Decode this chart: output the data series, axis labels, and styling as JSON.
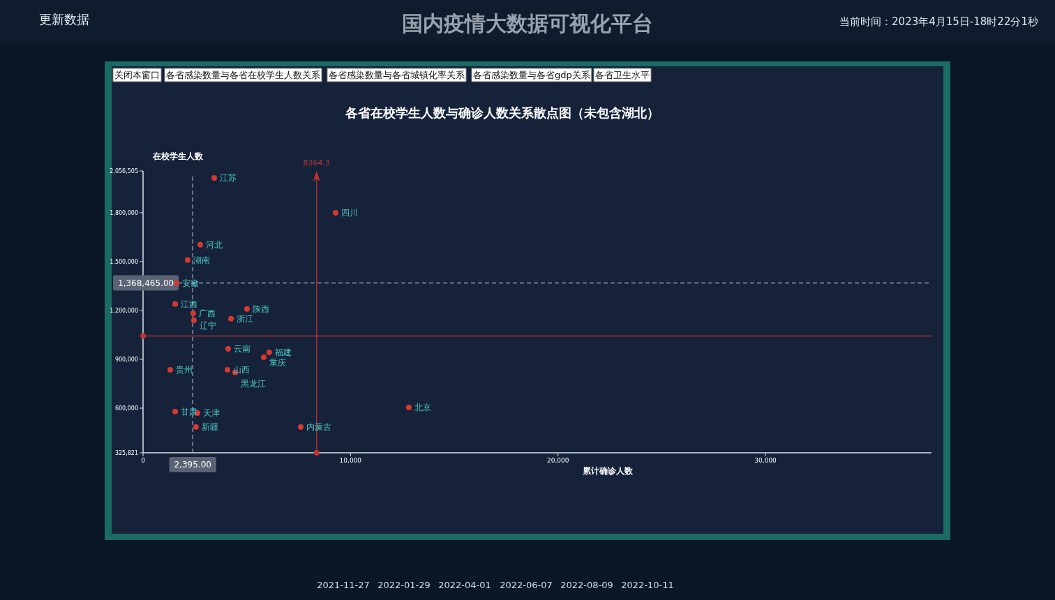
{
  "chart_data": {
    "type": "scatter",
    "title": "各省在校学生人数与确诊人数关系散点图（未包含湖北）",
    "xlabel": "累计确诊人数",
    "ylabel": "在校学生人数",
    "series": [
      {
        "color": "#d63a2f",
        "x": [
          3430,
          9280,
          2760,
          2150,
          1610,
          1550,
          2420,
          2450,
          5010,
          4240,
          4100,
          6080,
          5820,
          1310,
          4070,
          4440,
          1550,
          2620,
          2550,
          7600,
          12810
        ],
        "values": [
          2014000,
          1800000,
          1603000,
          1509000,
          1368000,
          1239000,
          1183000,
          1140000,
          1209000,
          1149000,
          964000,
          943000,
          913000,
          836000,
          836000,
          819000,
          579000,
          570000,
          484000,
          484000,
          604000
        ]
      }
    ],
    "xlim": [
      0,
      38000
    ],
    "ylim": [
      325821,
      2056505
    ],
    "xticks": [
      0,
      {
        "value": 10000,
        "label": "10,000"
      },
      {
        "value": 20000,
        "label": "20,000"
      },
      {
        "value": 30000,
        "label": "30,000"
      }
    ],
    "yticks": [
      {
        "value": 325821,
        "label": "325,821"
      },
      {
        "value": 600000,
        "label": "600,000"
      },
      {
        "value": 900000,
        "label": "900,000"
      },
      {
        "value": 1200000,
        "label": "1,200,000"
      },
      {
        "value": 1500000,
        "label": "1,500,000"
      },
      {
        "value": 1800000,
        "label": "1,800,000"
      },
      {
        "value": 2056505,
        "label": "2,056,505"
      }
    ],
    "marker": "circle",
    "grid": false,
    "ref_lines": [
      {
        "axis": "x",
        "value": 8364.3,
        "label": "8364.3",
        "color": "#c23531",
        "line_style": "solid"
      },
      {
        "axis": "y",
        "value": 1043000,
        "label": null,
        "color": "#c23531",
        "line_style": "solid"
      },
      {
        "axis": "x",
        "value": 2395,
        "label": "2,395.00",
        "color": "#aab4c0",
        "line_style": "dashed"
      },
      {
        "axis": "y",
        "value": 1368465,
        "label": "1,368,465.00",
        "color": "#aab4c0",
        "line_style": "dashed"
      }
    ],
    "annotations": [
      "更新数据",
      "国内疫情大数据可视化平台",
      "当前时间：2023年4月15日-18时22分1秒",
      "关闭本窗口",
      "各省感染数量与各省在校学生人数关系",
      "各省感染数量与各省城镇化率关系",
      "各省感染数量与各省gdp关系",
      "各省卫生水平",
      "2021-11-27",
      "2022-01-29",
      "2022-04-01",
      "2022-06-07",
      "2022-08-09",
      "2022-10-11",
      {
        "text": "江苏",
        "x": 3430,
        "y": 2014000
      },
      {
        "text": "四川",
        "x": 9280,
        "y": 1800000
      },
      {
        "text": "河北",
        "x": 2760,
        "y": 1603000
      },
      {
        "text": "湖南",
        "x": 2150,
        "y": 1509000
      },
      {
        "text": "安徽",
        "x": 1610,
        "y": 1368000
      },
      {
        "text": "江西",
        "x": 1550,
        "y": 1239000
      },
      {
        "text": "广西",
        "x": 2420,
        "y": 1183000
      },
      {
        "text": "辽宁",
        "x": 2450,
        "y": 1140000
      },
      {
        "text": "陕西",
        "x": 5010,
        "y": 1209000
      },
      {
        "text": "浙江",
        "x": 4240,
        "y": 1149000
      },
      {
        "text": "云南",
        "x": 4100,
        "y": 964000
      },
      {
        "text": "福建",
        "x": 6080,
        "y": 943000
      },
      {
        "text": "重庆",
        "x": 5820,
        "y": 913000
      },
      {
        "text": "贵州",
        "x": 1310,
        "y": 836000
      },
      {
        "text": "山西",
        "x": 4070,
        "y": 836000
      },
      {
        "text": "黑龙江",
        "x": 4440,
        "y": 819000
      },
      {
        "text": "甘肃",
        "x": 1550,
        "y": 579000
      },
      {
        "text": "天津",
        "x": 2620,
        "y": 570000
      },
      {
        "text": "新疆",
        "x": 2550,
        "y": 484000
      },
      {
        "text": "内蒙古",
        "x": 7600,
        "y": 484000
      },
      {
        "text": "北京",
        "x": 12810,
        "y": 604000
      }
    ]
  }
}
